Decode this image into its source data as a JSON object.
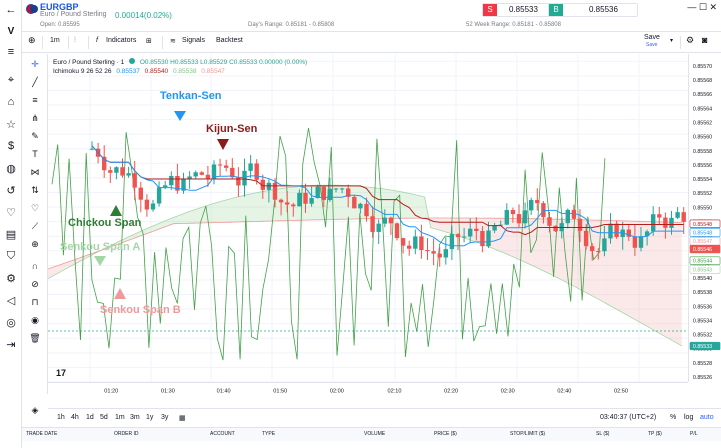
{
  "symbol": {
    "ticker": "EURGBP",
    "description": "Euro / Pound Sterling",
    "change": "0.00014(0.02%)",
    "open": "Open: 0.85595",
    "days_range": "Day's Range: 0.85181 - 0.85808",
    "week52_range": "52 Week Range: 0.85181 - 0.85808"
  },
  "trade": {
    "sell_label": "S",
    "sell_price": "0.85533",
    "buy_label": "B",
    "buy_price": "0.85536"
  },
  "window_controls": "— ☐ ✕",
  "toolbar": {
    "add_symbol": "⊕",
    "interval": "1m",
    "candles_icon": "chart-candles-icon",
    "indicators": "Indicators",
    "layouts_icon": "layout-grid-icon",
    "signals": "Signals",
    "backtest": "Backtest",
    "save": "Save",
    "save_sub": "Save",
    "undo": "↶",
    "redo": "↷"
  },
  "legend": {
    "title": "Euro / Pound Sterling · 1",
    "ohlc": "O0.85530 H0.85533 L0.85529 C0.85533 0.00000 (0.00%)",
    "ichimoku_name": "Ichimoku 9 26 52 26",
    "ichimoku_values": [
      "0.85537",
      "0.85540",
      "0.85538",
      "0.85547"
    ]
  },
  "annotations": {
    "tenkan": "Tenkan-Sen",
    "kijun": "Kijun-Sen",
    "chikou": "Chickou Span",
    "senkou_a": "Senkou Span A",
    "senkou_b": "Senkou Span B"
  },
  "colors": {
    "up": "#26a69a",
    "down": "#ef5350",
    "tenkan": "#2196f3",
    "kijun": "#b71c1c",
    "chikou": "#43a047",
    "senkou_a": "#a5d6a7",
    "senkou_b": "#ef9a9a"
  },
  "price_axis": {
    "ticks": [
      "0.85570",
      "0.85568",
      "0.85566",
      "0.85564",
      "0.85562",
      "0.85560",
      "0.85558",
      "0.85556",
      "0.85554",
      "0.85552",
      "0.85550",
      "0.85548",
      "0.85546",
      "0.85544",
      "0.85542",
      "0.85540",
      "0.85538",
      "0.85536",
      "0.85534",
      "0.85532",
      "0.85530",
      "0.85528",
      "0.85526"
    ],
    "tags": [
      {
        "label": "0.85548",
        "kind": "kijun"
      },
      {
        "label": "0.85548",
        "kind": "tenkan"
      },
      {
        "label": "0.85547",
        "kind": "senkou_b"
      },
      {
        "label": "0.85546",
        "kind": "senkou_b_solid"
      },
      {
        "label": "0.85544",
        "kind": "chikou"
      },
      {
        "label": "0.85543",
        "kind": "senkou_a"
      },
      {
        "label": "0.85533",
        "kind": "last"
      }
    ]
  },
  "time_axis": {
    "ticks": [
      "01:20",
      "01:30",
      "01:40",
      "01:50",
      "02:00",
      "02:10",
      "02:20",
      "02:30",
      "02:40",
      "02:50"
    ]
  },
  "bottom": {
    "ranges": [
      "1h",
      "4h",
      "1d",
      "5d",
      "1m",
      "3m",
      "1y",
      "3y"
    ],
    "calendar_icon": "calendar-icon",
    "clock": "03:40:37 (UTC+2)",
    "percent": "%",
    "log": "log",
    "auto": "auto"
  },
  "trade_table": {
    "columns": [
      "TRADE DATE",
      "ORDER ID",
      "ACCOUNT",
      "TYPE",
      "VOLUME",
      "PRICE ($)",
      "STOP/LIMIT ($)",
      "SL ($)",
      "TP ($)",
      "P/L"
    ]
  }
}
